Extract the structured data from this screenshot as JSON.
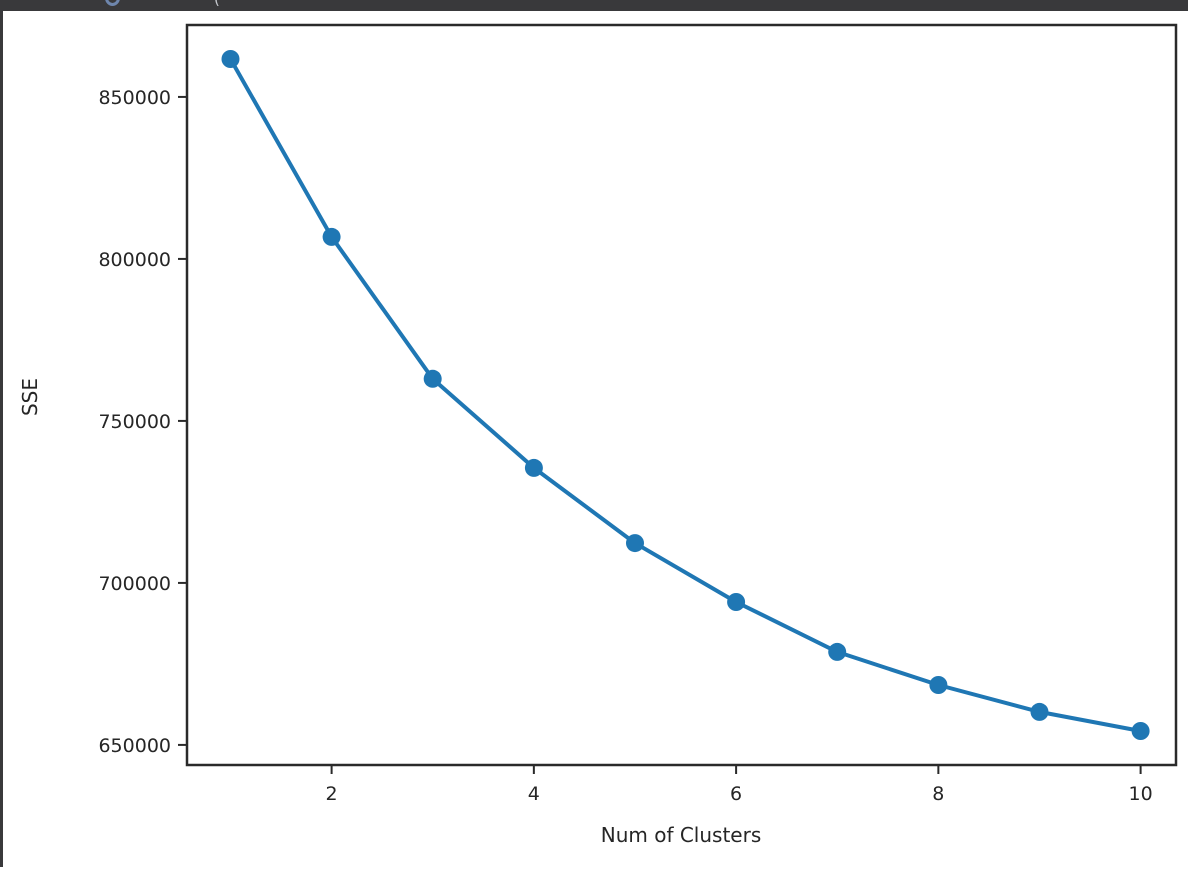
{
  "window": {
    "titlebar_color": "#39393b",
    "clipped_text": "(",
    "accent_fragment_color": "#6e86ad"
  },
  "chart_data": {
    "type": "line",
    "x": [
      1,
      2,
      3,
      4,
      5,
      6,
      7,
      8,
      9,
      10
    ],
    "series": [
      {
        "name": "SSE",
        "values": [
          861700,
          806800,
          763000,
          735500,
          712300,
          694100,
          678700,
          668500,
          660200,
          654300
        ]
      }
    ],
    "title": "",
    "xlabel": "Num of Clusters",
    "ylabel": "SSE",
    "xticks": [
      2,
      4,
      6,
      8,
      10
    ],
    "yticks": [
      650000,
      700000,
      750000,
      800000,
      850000
    ],
    "xlim": [
      0.57,
      10.35
    ],
    "ylim": [
      643800,
      872200
    ],
    "line_color": "#1f77b4",
    "marker": "circle",
    "marker_radius": 9,
    "line_width": 4,
    "spine_color": "#2a2a2a",
    "tick_text_color": "#262626",
    "grid": false,
    "legend": null
  }
}
